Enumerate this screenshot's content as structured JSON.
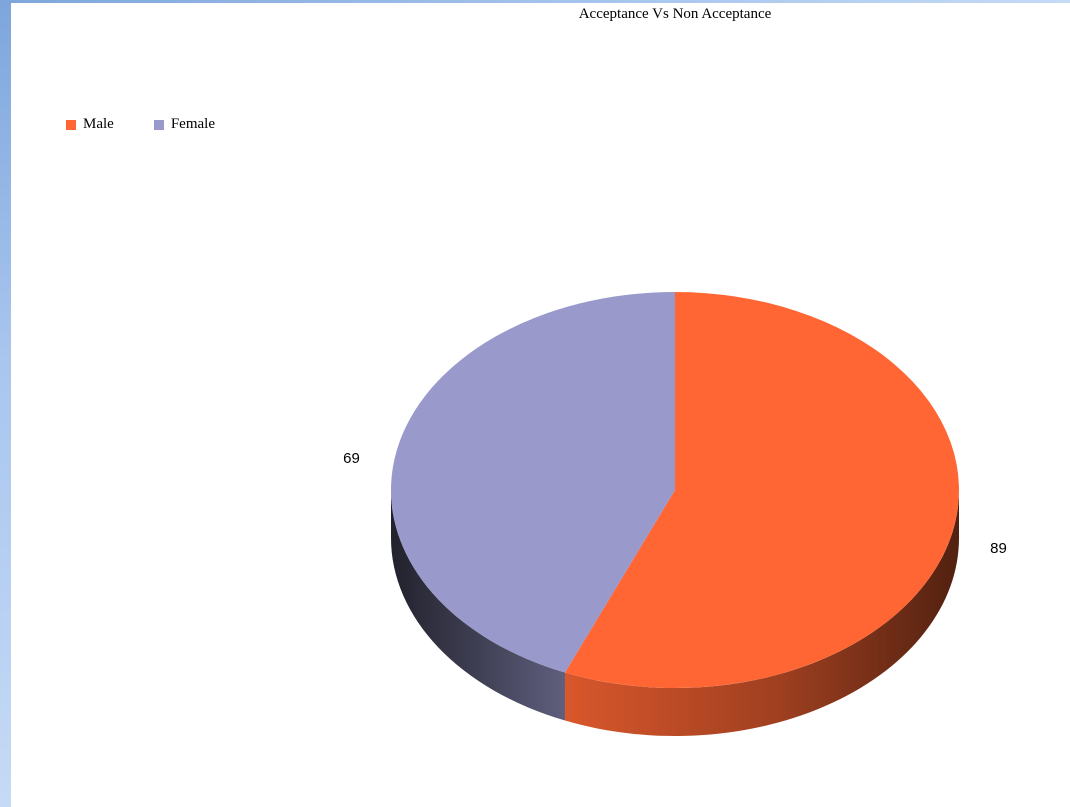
{
  "chart_data": {
    "type": "pie",
    "title": "Acceptance Vs Non Acceptance",
    "categories": [
      "Male",
      "Female"
    ],
    "values": [
      89,
      69
    ],
    "legend_position": "top-left",
    "colors": [
      "#ff6633",
      "#9999cc"
    ],
    "data_labels": [
      "89",
      "69"
    ],
    "style": "3d"
  }
}
